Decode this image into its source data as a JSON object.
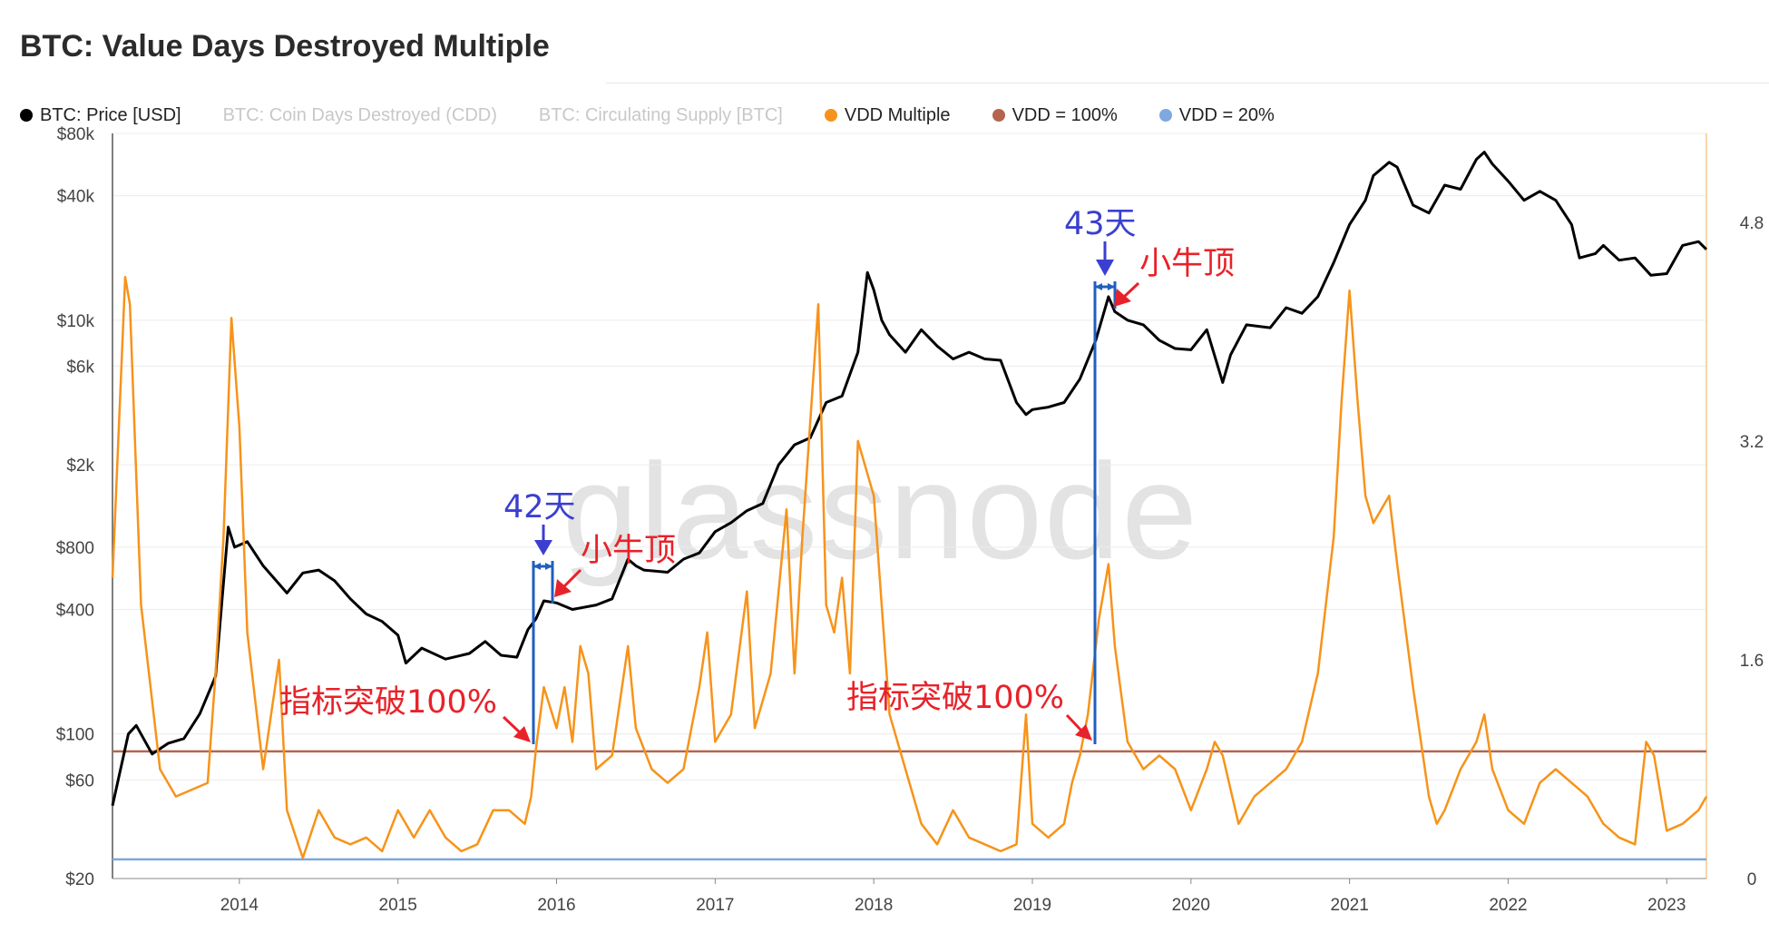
{
  "title": "BTC: Value Days Destroyed Multiple",
  "watermark": "glassnode",
  "legend": [
    {
      "label": "BTC: Price [USD]",
      "color": "#000000",
      "disabled": false
    },
    {
      "label": "BTC: Coin Days Destroyed (CDD)",
      "color": "",
      "disabled": true
    },
    {
      "label": "BTC: Circulating Supply [BTC]",
      "color": "",
      "disabled": true
    },
    {
      "label": "VDD Multiple",
      "color": "#f7931a",
      "disabled": false
    },
    {
      "label": "VDD = 100%",
      "color": "#b5654e",
      "disabled": false
    },
    {
      "label": "VDD = 20%",
      "color": "#7fa7e0",
      "disabled": false
    }
  ],
  "chart_data": {
    "type": "line",
    "x_ticks": [
      "2014",
      "2015",
      "2016",
      "2017",
      "2018",
      "2019",
      "2020",
      "2021",
      "2022",
      "2023"
    ],
    "x_range": [
      2013.2,
      2023.25
    ],
    "y_left": {
      "scale": "log",
      "ticks": [
        "$80k",
        "$40k",
        "$10k",
        "$6k",
        "$2k",
        "$800",
        "$400",
        "$100",
        "$60",
        "$20"
      ],
      "range": [
        20,
        80000
      ]
    },
    "y_right": {
      "scale": "linear",
      "ticks": [
        "4.8",
        "3.2",
        "1.6",
        "0"
      ],
      "range": [
        0,
        5.45
      ]
    },
    "series": [
      {
        "name": "BTC: Price [USD]",
        "color": "#000000",
        "axis": "left",
        "points": [
          [
            2013.2,
            45
          ],
          [
            2013.3,
            100
          ],
          [
            2013.35,
            110
          ],
          [
            2013.45,
            80
          ],
          [
            2013.55,
            90
          ],
          [
            2013.65,
            95
          ],
          [
            2013.75,
            125
          ],
          [
            2013.85,
            190
          ],
          [
            2013.93,
            1000
          ],
          [
            2013.97,
            800
          ],
          [
            2014.05,
            850
          ],
          [
            2014.15,
            650
          ],
          [
            2014.3,
            480
          ],
          [
            2014.4,
            600
          ],
          [
            2014.5,
            620
          ],
          [
            2014.6,
            550
          ],
          [
            2014.7,
            450
          ],
          [
            2014.8,
            380
          ],
          [
            2014.9,
            350
          ],
          [
            2015.0,
            300
          ],
          [
            2015.05,
            220
          ],
          [
            2015.15,
            260
          ],
          [
            2015.3,
            230
          ],
          [
            2015.45,
            245
          ],
          [
            2015.55,
            280
          ],
          [
            2015.65,
            240
          ],
          [
            2015.75,
            235
          ],
          [
            2015.82,
            320
          ],
          [
            2015.87,
            360
          ],
          [
            2015.92,
            440
          ],
          [
            2016.0,
            430
          ],
          [
            2016.1,
            400
          ],
          [
            2016.25,
            420
          ],
          [
            2016.35,
            450
          ],
          [
            2016.45,
            700
          ],
          [
            2016.5,
            650
          ],
          [
            2016.55,
            620
          ],
          [
            2016.7,
            605
          ],
          [
            2016.8,
            700
          ],
          [
            2016.9,
            750
          ],
          [
            2017.0,
            950
          ],
          [
            2017.1,
            1050
          ],
          [
            2017.2,
            1200
          ],
          [
            2017.3,
            1300
          ],
          [
            2017.4,
            2000
          ],
          [
            2017.5,
            2500
          ],
          [
            2017.6,
            2700
          ],
          [
            2017.7,
            4000
          ],
          [
            2017.8,
            4300
          ],
          [
            2017.9,
            7000
          ],
          [
            2017.96,
            17000
          ],
          [
            2018.0,
            14000
          ],
          [
            2018.05,
            10000
          ],
          [
            2018.1,
            8500
          ],
          [
            2018.2,
            7000
          ],
          [
            2018.3,
            9000
          ],
          [
            2018.4,
            7500
          ],
          [
            2018.5,
            6500
          ],
          [
            2018.6,
            7000
          ],
          [
            2018.7,
            6500
          ],
          [
            2018.8,
            6400
          ],
          [
            2018.9,
            4000
          ],
          [
            2018.96,
            3500
          ],
          [
            2019.0,
            3700
          ],
          [
            2019.1,
            3800
          ],
          [
            2019.2,
            4000
          ],
          [
            2019.3,
            5200
          ],
          [
            2019.4,
            8000
          ],
          [
            2019.48,
            13000
          ],
          [
            2019.52,
            11000
          ],
          [
            2019.6,
            10000
          ],
          [
            2019.7,
            9500
          ],
          [
            2019.8,
            8000
          ],
          [
            2019.9,
            7300
          ],
          [
            2020.0,
            7200
          ],
          [
            2020.1,
            9000
          ],
          [
            2020.2,
            5000
          ],
          [
            2020.25,
            6800
          ],
          [
            2020.35,
            9500
          ],
          [
            2020.5,
            9200
          ],
          [
            2020.6,
            11500
          ],
          [
            2020.7,
            10800
          ],
          [
            2020.8,
            13000
          ],
          [
            2020.9,
            19000
          ],
          [
            2021.0,
            29000
          ],
          [
            2021.1,
            38000
          ],
          [
            2021.15,
            50000
          ],
          [
            2021.25,
            58000
          ],
          [
            2021.3,
            55000
          ],
          [
            2021.4,
            36000
          ],
          [
            2021.5,
            33000
          ],
          [
            2021.6,
            45000
          ],
          [
            2021.7,
            43000
          ],
          [
            2021.8,
            60000
          ],
          [
            2021.85,
            65000
          ],
          [
            2021.9,
            57000
          ],
          [
            2022.0,
            47000
          ],
          [
            2022.1,
            38000
          ],
          [
            2022.2,
            42000
          ],
          [
            2022.3,
            38000
          ],
          [
            2022.4,
            29000
          ],
          [
            2022.45,
            20000
          ],
          [
            2022.55,
            21000
          ],
          [
            2022.6,
            23000
          ],
          [
            2022.7,
            19500
          ],
          [
            2022.8,
            20000
          ],
          [
            2022.9,
            16500
          ],
          [
            2023.0,
            16800
          ],
          [
            2023.1,
            23000
          ],
          [
            2023.2,
            24000
          ],
          [
            2023.25,
            22000
          ]
        ]
      },
      {
        "name": "VDD Multiple",
        "color": "#f7931a",
        "axis": "right",
        "points": [
          [
            2013.2,
            2.2
          ],
          [
            2013.28,
            4.4
          ],
          [
            2013.31,
            4.2
          ],
          [
            2013.38,
            2.0
          ],
          [
            2013.5,
            0.8
          ],
          [
            2013.6,
            0.6
          ],
          [
            2013.7,
            0.65
          ],
          [
            2013.8,
            0.7
          ],
          [
            2013.85,
            1.5
          ],
          [
            2013.9,
            2.5
          ],
          [
            2013.95,
            4.1
          ],
          [
            2014.0,
            3.3
          ],
          [
            2014.05,
            1.8
          ],
          [
            2014.15,
            0.8
          ],
          [
            2014.25,
            1.6
          ],
          [
            2014.3,
            0.5
          ],
          [
            2014.4,
            0.15
          ],
          [
            2014.5,
            0.5
          ],
          [
            2014.6,
            0.3
          ],
          [
            2014.7,
            0.25
          ],
          [
            2014.8,
            0.3
          ],
          [
            2014.9,
            0.2
          ],
          [
            2015.0,
            0.5
          ],
          [
            2015.1,
            0.3
          ],
          [
            2015.2,
            0.5
          ],
          [
            2015.3,
            0.3
          ],
          [
            2015.4,
            0.2
          ],
          [
            2015.5,
            0.25
          ],
          [
            2015.6,
            0.5
          ],
          [
            2015.7,
            0.5
          ],
          [
            2015.8,
            0.4
          ],
          [
            2015.84,
            0.6
          ],
          [
            2015.87,
            0.95
          ],
          [
            2015.92,
            1.4
          ],
          [
            2016.0,
            1.1
          ],
          [
            2016.05,
            1.4
          ],
          [
            2016.1,
            1.0
          ],
          [
            2016.15,
            1.7
          ],
          [
            2016.2,
            1.5
          ],
          [
            2016.25,
            0.8
          ],
          [
            2016.35,
            0.9
          ],
          [
            2016.45,
            1.7
          ],
          [
            2016.5,
            1.1
          ],
          [
            2016.6,
            0.8
          ],
          [
            2016.7,
            0.7
          ],
          [
            2016.8,
            0.8
          ],
          [
            2016.9,
            1.4
          ],
          [
            2016.95,
            1.8
          ],
          [
            2017.0,
            1.0
          ],
          [
            2017.1,
            1.2
          ],
          [
            2017.2,
            2.1
          ],
          [
            2017.25,
            1.1
          ],
          [
            2017.35,
            1.5
          ],
          [
            2017.45,
            2.7
          ],
          [
            2017.5,
            1.5
          ],
          [
            2017.55,
            2.5
          ],
          [
            2017.65,
            4.2
          ],
          [
            2017.7,
            2.0
          ],
          [
            2017.75,
            1.8
          ],
          [
            2017.8,
            2.2
          ],
          [
            2017.85,
            1.5
          ],
          [
            2017.9,
            3.2
          ],
          [
            2018.0,
            2.8
          ],
          [
            2018.1,
            1.2
          ],
          [
            2018.2,
            0.8
          ],
          [
            2018.3,
            0.4
          ],
          [
            2018.4,
            0.25
          ],
          [
            2018.5,
            0.5
          ],
          [
            2018.6,
            0.3
          ],
          [
            2018.7,
            0.25
          ],
          [
            2018.8,
            0.2
          ],
          [
            2018.9,
            0.25
          ],
          [
            2018.96,
            1.2
          ],
          [
            2019.0,
            0.4
          ],
          [
            2019.1,
            0.3
          ],
          [
            2019.2,
            0.4
          ],
          [
            2019.25,
            0.7
          ],
          [
            2019.3,
            0.9
          ],
          [
            2019.35,
            1.2
          ],
          [
            2019.42,
            1.9
          ],
          [
            2019.48,
            2.3
          ],
          [
            2019.52,
            1.7
          ],
          [
            2019.6,
            1.0
          ],
          [
            2019.7,
            0.8
          ],
          [
            2019.8,
            0.9
          ],
          [
            2019.9,
            0.8
          ],
          [
            2020.0,
            0.5
          ],
          [
            2020.1,
            0.8
          ],
          [
            2020.15,
            1.0
          ],
          [
            2020.2,
            0.9
          ],
          [
            2020.3,
            0.4
          ],
          [
            2020.4,
            0.6
          ],
          [
            2020.5,
            0.7
          ],
          [
            2020.6,
            0.8
          ],
          [
            2020.7,
            1.0
          ],
          [
            2020.8,
            1.5
          ],
          [
            2020.9,
            2.5
          ],
          [
            2020.95,
            3.5
          ],
          [
            2021.0,
            4.3
          ],
          [
            2021.05,
            3.5
          ],
          [
            2021.1,
            2.8
          ],
          [
            2021.15,
            2.6
          ],
          [
            2021.25,
            2.8
          ],
          [
            2021.3,
            2.3
          ],
          [
            2021.4,
            1.4
          ],
          [
            2021.5,
            0.6
          ],
          [
            2021.55,
            0.4
          ],
          [
            2021.6,
            0.5
          ],
          [
            2021.7,
            0.8
          ],
          [
            2021.8,
            1.0
          ],
          [
            2021.85,
            1.2
          ],
          [
            2021.9,
            0.8
          ],
          [
            2022.0,
            0.5
          ],
          [
            2022.1,
            0.4
          ],
          [
            2022.2,
            0.7
          ],
          [
            2022.3,
            0.8
          ],
          [
            2022.4,
            0.7
          ],
          [
            2022.5,
            0.6
          ],
          [
            2022.6,
            0.4
          ],
          [
            2022.7,
            0.3
          ],
          [
            2022.8,
            0.25
          ],
          [
            2022.87,
            1.0
          ],
          [
            2022.92,
            0.9
          ],
          [
            2023.0,
            0.35
          ],
          [
            2023.1,
            0.4
          ],
          [
            2023.2,
            0.5
          ],
          [
            2023.25,
            0.6
          ]
        ]
      },
      {
        "name": "VDD = 100%",
        "color": "#b5654e",
        "axis": "right",
        "constant": 0.93
      },
      {
        "name": "VDD = 20%",
        "color": "#7fa7e0",
        "axis": "right",
        "constant": 0.14
      }
    ],
    "annotations": [
      {
        "text": "42天",
        "color": "blue"
      },
      {
        "text": "小牛顶",
        "color": "red"
      },
      {
        "text": "指标突破100%",
        "color": "red"
      },
      {
        "text": "43天",
        "color": "blue"
      },
      {
        "text": "小牛顶",
        "color": "red"
      },
      {
        "text": "指标突破100%",
        "color": "red"
      }
    ]
  }
}
